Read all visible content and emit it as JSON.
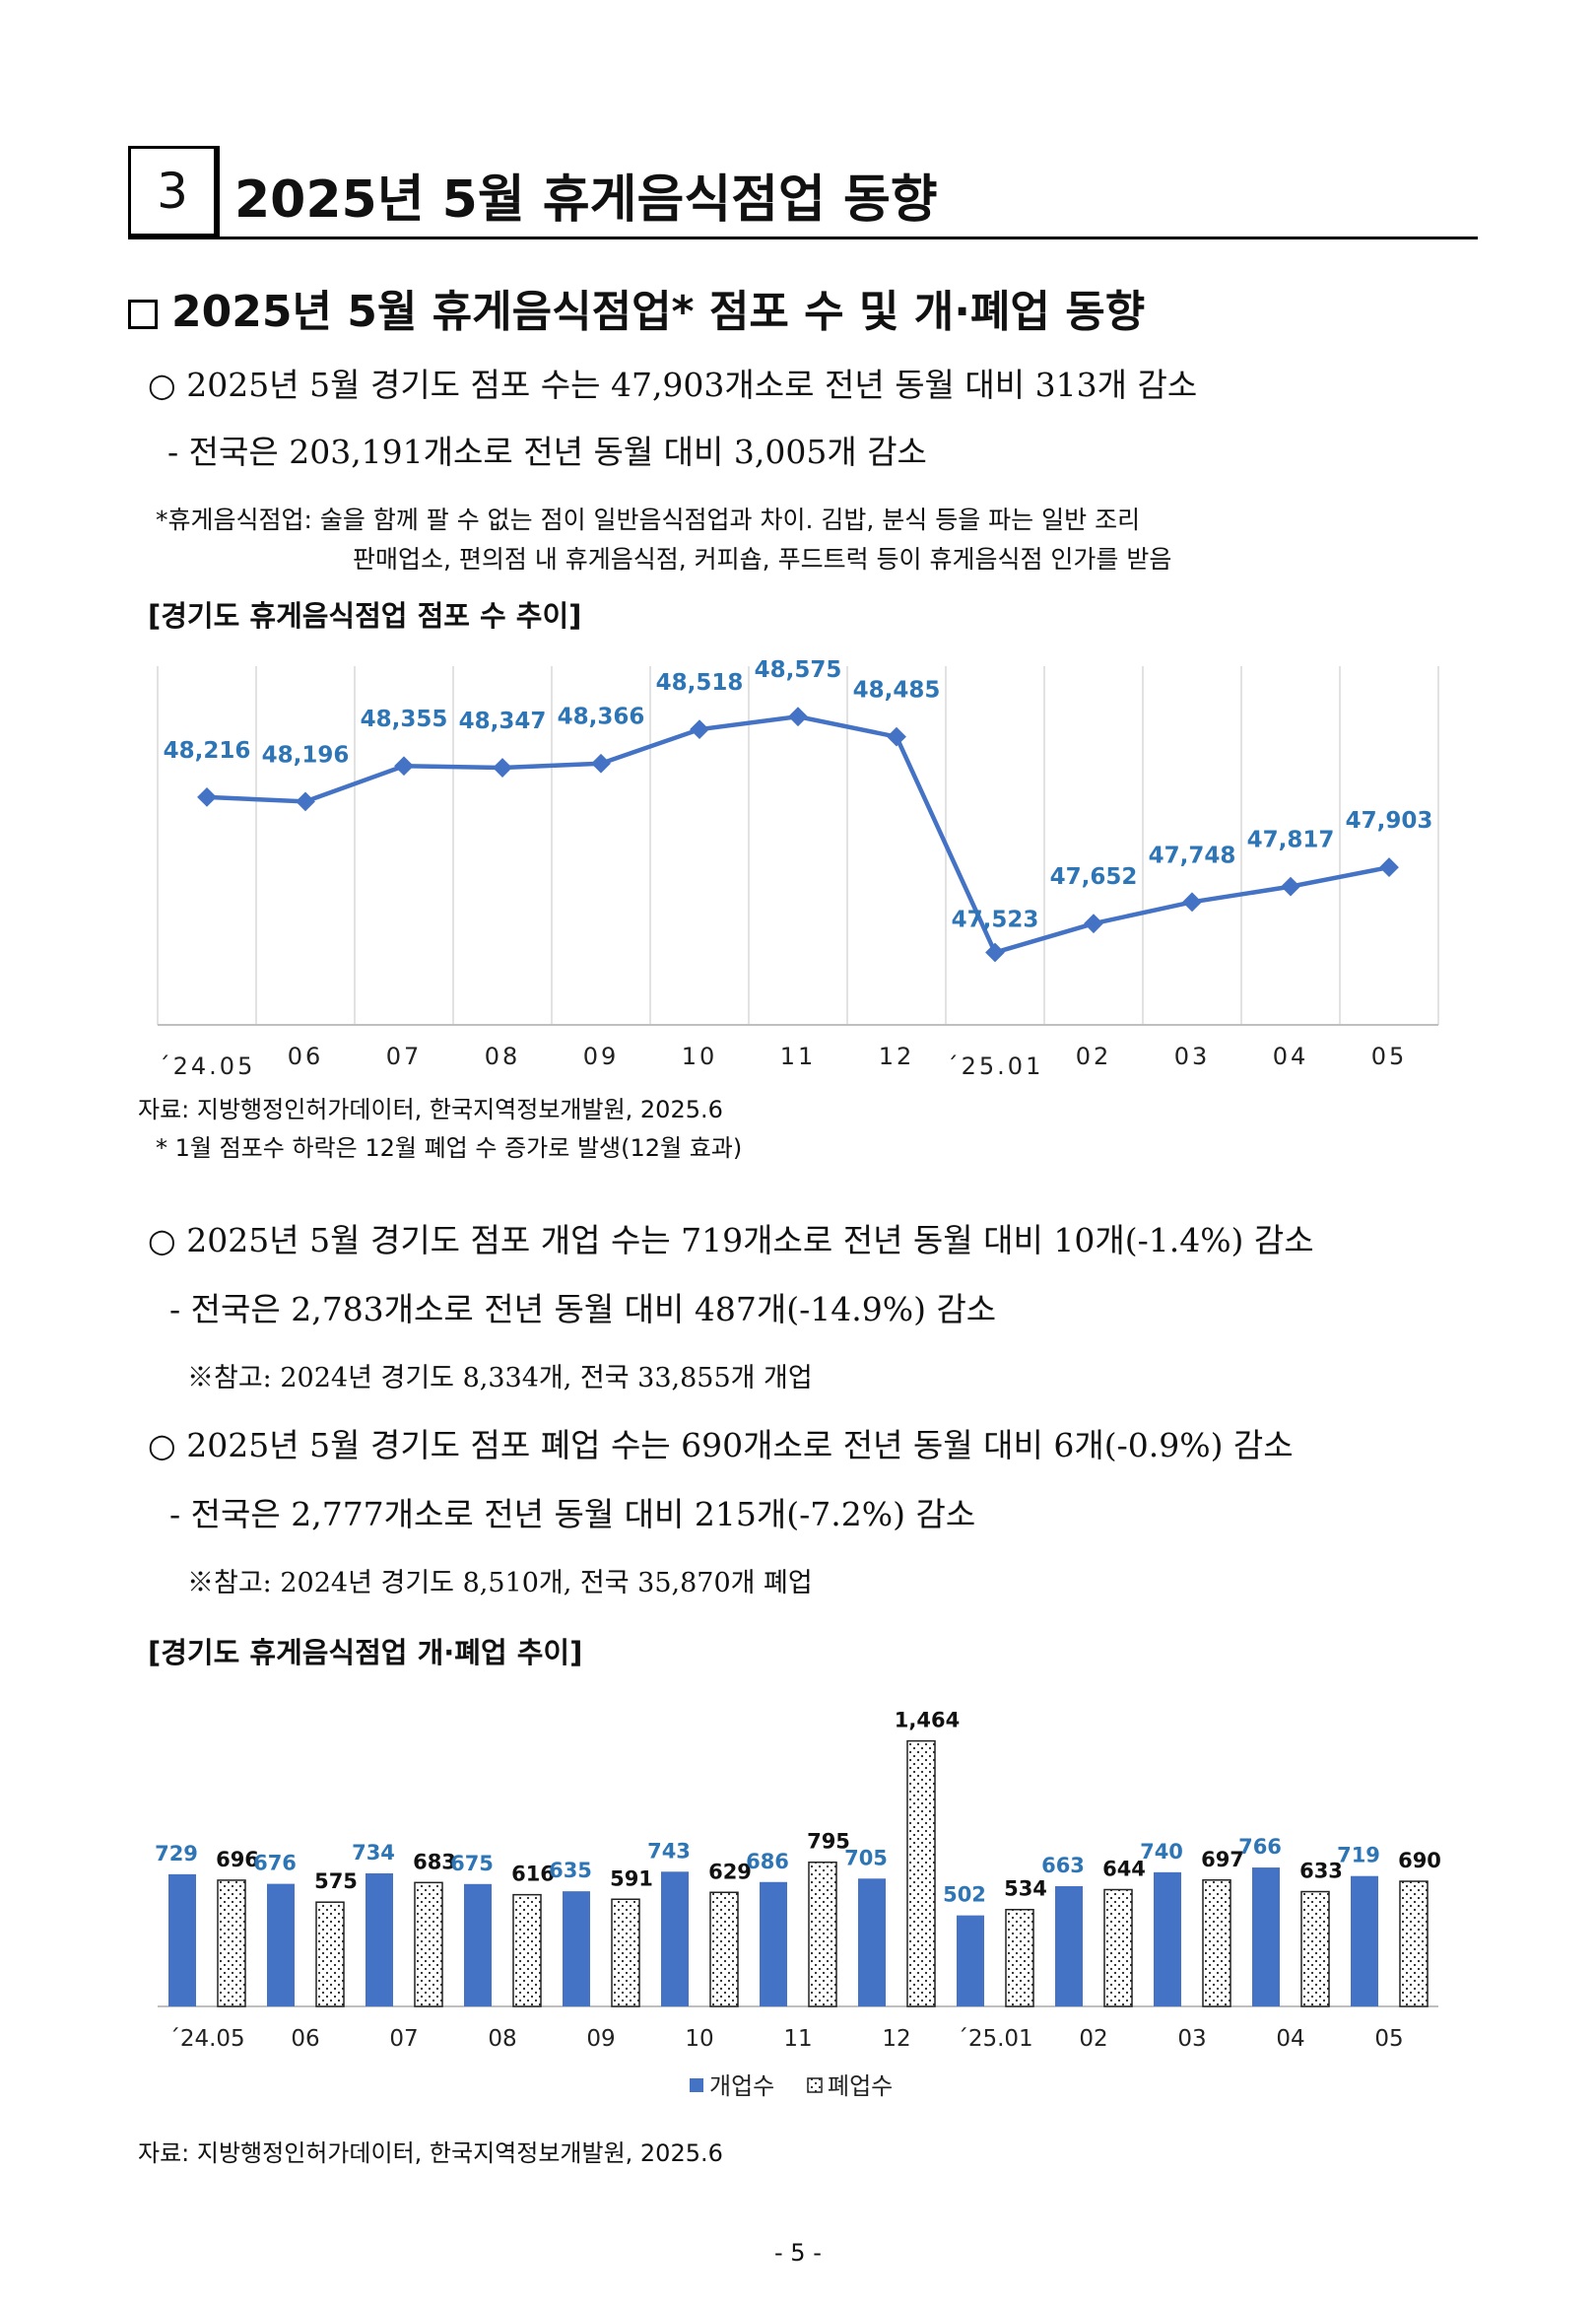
{
  "section": {
    "number": "3",
    "title": "2025년 5월 휴게음식점업 동향"
  },
  "subheading": "2025년 5월 휴게음식점업* 점포 수 및 개·폐업 동향",
  "para1": {
    "main": "○ 2025년 5월 경기도 점포 수는 47,903개소로 전년 동월 대비 313개 감소",
    "sub": "- 전국은 203,191개소로 전년 동월 대비 3,005개 감소",
    "note1": "*휴게음식점업: 술을 함께 팔 수 없는 점이 일반음식점업과 차이. 김밥, 분식 등을 파는 일반 조리",
    "note2": "판매업소, 편의점 내 휴게음식점, 커피숍, 푸드트럭 등이 휴게음식점 인가를 받음"
  },
  "chart1_title": "[경기도 휴게음식점업 점포 수 추이]",
  "chart1_source": "자료: 지방행정인허가데이터, 한국지역정보개발원, 2025.6",
  "chart1_note": "* 1월 점포수 하락은 12월 폐업 수 증가로 발생(12월 효과)",
  "para2": {
    "main": "○ 2025년 5월 경기도 점포 개업 수는 719개소로 전년 동월 대비 10개(-1.4%) 감소",
    "sub": "- 전국은  2,783개소로 전년 동월 대비 487개(-14.9%) 감소",
    "ref": "※참고: 2024년 경기도 8,334개, 전국 33,855개 개업"
  },
  "para3": {
    "main": "○ 2025년 5월 경기도 점포 폐업 수는 690개소로 전년 동월 대비 6개(-0.9%) 감소",
    "sub": "- 전국은  2,777개소로 전년 동월 대비 215개(-7.2%) 감소",
    "ref": "※참고: 2024년 경기도 8,510개, 전국 35,870개 폐업"
  },
  "chart2_title": "[경기도 휴게음식점업 개·폐업 추이]",
  "chart2_source": "자료: 지방행정인허가데이터, 한국지역정보개발원, 2025.6",
  "page_number": "- 5 -",
  "chart_data": [
    {
      "type": "line",
      "categories": [
        "´24.05",
        "06",
        "07",
        "08",
        "09",
        "10",
        "11",
        "12",
        "´25.01",
        "02",
        "03",
        "04",
        "05"
      ],
      "values": [
        48216,
        48196,
        48355,
        48347,
        48366,
        48518,
        48575,
        48485,
        47523,
        47652,
        47748,
        47817,
        47903
      ],
      "labels": [
        "48,216",
        "48,196",
        "48,355",
        "48,347",
        "48,366",
        "48,518",
        "48,575",
        "48,485",
        "47,523",
        "47,652",
        "47,748",
        "47,817",
        "47,903"
      ],
      "title": "[경기도 휴게음식점업 점포 수 추이]",
      "ylim": [
        47200,
        48800
      ],
      "grid": "vertical",
      "color": "#4472C4",
      "label_color": "#2E75B6"
    },
    {
      "type": "bar",
      "categories": [
        "´24.05",
        "06",
        "07",
        "08",
        "09",
        "10",
        "11",
        "12",
        "´25.01",
        "02",
        "03",
        "04",
        "05"
      ],
      "series": [
        {
          "name": "개업수",
          "values": [
            729,
            676,
            734,
            675,
            635,
            743,
            686,
            705,
            502,
            663,
            740,
            766,
            719
          ],
          "labels": [
            "729",
            "676",
            "734",
            "675",
            "635",
            "743",
            "686",
            "705",
            "502",
            "663",
            "740",
            "766",
            "719"
          ],
          "color": "#4472C4",
          "label_color": "#2E75B6"
        },
        {
          "name": "폐업수",
          "values": [
            696,
            575,
            683,
            616,
            591,
            629,
            795,
            1464,
            534,
            644,
            697,
            633,
            690
          ],
          "labels": [
            "696",
            "575",
            "683",
            "616",
            "591",
            "629",
            "795",
            "1,464",
            "534",
            "644",
            "697",
            "633",
            "690"
          ],
          "color": "dotted",
          "label_color": "#111111"
        }
      ],
      "title": "[경기도 휴게음식점업 개·폐업 추이]",
      "ylim": [
        0,
        1500
      ],
      "legend": "bottom-center"
    }
  ]
}
